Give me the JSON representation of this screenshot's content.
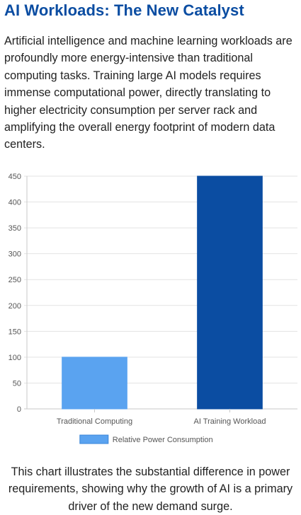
{
  "header": {
    "title": "AI Workloads: The New Catalyst"
  },
  "intro": {
    "text": "Artificial intelligence and machine learning workloads are profoundly more energy-intensive than traditional computing tasks. Training large AI models requires immense computational power, directly translating to higher electricity consumption per server rack and amplifying the overall energy footprint of modern data centers."
  },
  "chart_data": {
    "type": "bar",
    "categories": [
      "Traditional Computing",
      "AI Training Workload"
    ],
    "series": [
      {
        "name": "Relative Power Consumption",
        "values": [
          100,
          450
        ]
      }
    ],
    "bar_colors": [
      "#5aa3f0",
      "#0b4da2"
    ],
    "ylim": [
      0,
      450
    ],
    "yticks": [
      0,
      50,
      100,
      150,
      200,
      250,
      300,
      350,
      400,
      450
    ],
    "grid": true,
    "legend_position": "bottom",
    "legend_color": "#5aa3f0"
  },
  "caption": {
    "text": "This chart illustrates the substantial difference in power requirements, showing why the growth of AI is a primary driver of the new demand surge."
  }
}
